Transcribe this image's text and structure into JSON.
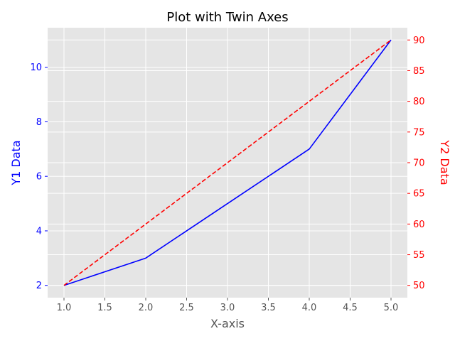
{
  "chart_data": {
    "type": "line",
    "title": "Plot with Twin Axes",
    "xlabel": "X-axis",
    "ylabel_left": "Y1 Data",
    "ylabel_right": "Y2 Data",
    "x": [
      1,
      2,
      3,
      4,
      5
    ],
    "xlim": [
      0.8,
      5.2
    ],
    "xticks": [
      "1.0",
      "1.5",
      "2.0",
      "2.5",
      "3.0",
      "3.5",
      "4.0",
      "4.5",
      "5.0"
    ],
    "grid": true,
    "series": [
      {
        "axis": "left",
        "values": [
          2,
          3,
          5,
          7,
          11
        ],
        "color": "#0000ff",
        "style": "solid"
      },
      {
        "axis": "right",
        "values": [
          50,
          60,
          70,
          80,
          90
        ],
        "color": "#ff0000",
        "style": "dashed"
      }
    ],
    "ylim_left": [
      1.55,
      11.45
    ],
    "yticks_left": [
      "2",
      "4",
      "6",
      "8",
      "10"
    ],
    "ylim_right": [
      48,
      92
    ],
    "yticks_right": [
      "50",
      "55",
      "60",
      "65",
      "70",
      "75",
      "80",
      "85",
      "90"
    ],
    "left_axis_color": "#0000ff",
    "right_axis_color": "#ff0000",
    "background_color": "#e5e5e5",
    "grid_color": "#ffffff",
    "xlabel_color": "#555555",
    "xtick_color": "#555555"
  }
}
